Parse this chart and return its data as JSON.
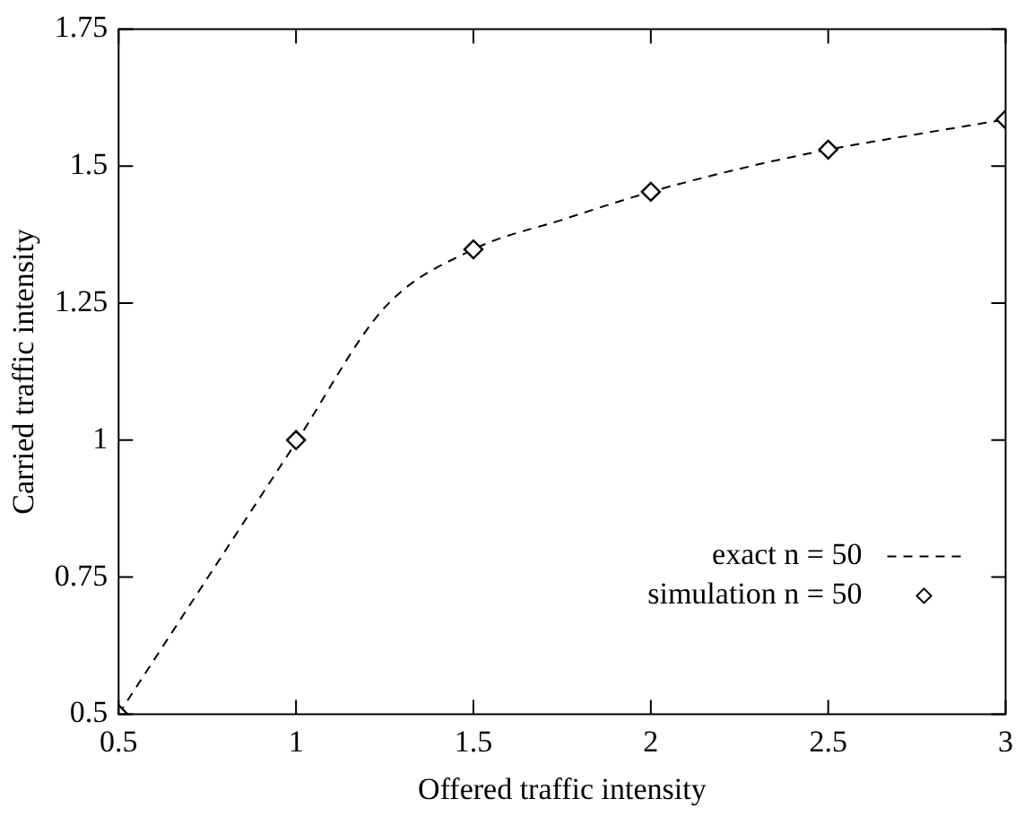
{
  "chart_data": {
    "type": "line",
    "xlabel": "Offered traffic intensity",
    "ylabel": "Carried traffic intensity",
    "xlim": [
      0.5,
      3
    ],
    "xticks": [
      0.5,
      1,
      1.5,
      2,
      2.5,
      3
    ],
    "ylim": [
      0.5,
      1.75
    ],
    "yticks": [
      0.5,
      0.75,
      1,
      1.25,
      1.5,
      1.75
    ],
    "grid": false,
    "legend": "bottom right",
    "series": [
      {
        "name": "exact n = 50",
        "type": "line",
        "color": "#000000",
        "line_style": "dashed",
        "marker": "none",
        "x": [
          0.5,
          0.75,
          1,
          1.25,
          1.5,
          1.75,
          2,
          2.25,
          2.5,
          2.75,
          3
        ],
        "values": [
          0.5,
          0.748,
          0.996,
          1.242,
          1.348,
          1.402,
          1.453,
          1.495,
          1.53,
          1.558,
          1.585
        ]
      },
      {
        "name": "simulation n = 50",
        "type": "scatter",
        "color": "#000000",
        "marker": "diamond",
        "x": [
          0.5,
          1,
          1.5,
          2,
          2.5,
          3
        ],
        "values": [
          0.5,
          1.0,
          1.348,
          1.453,
          1.53,
          1.585
        ]
      }
    ]
  }
}
